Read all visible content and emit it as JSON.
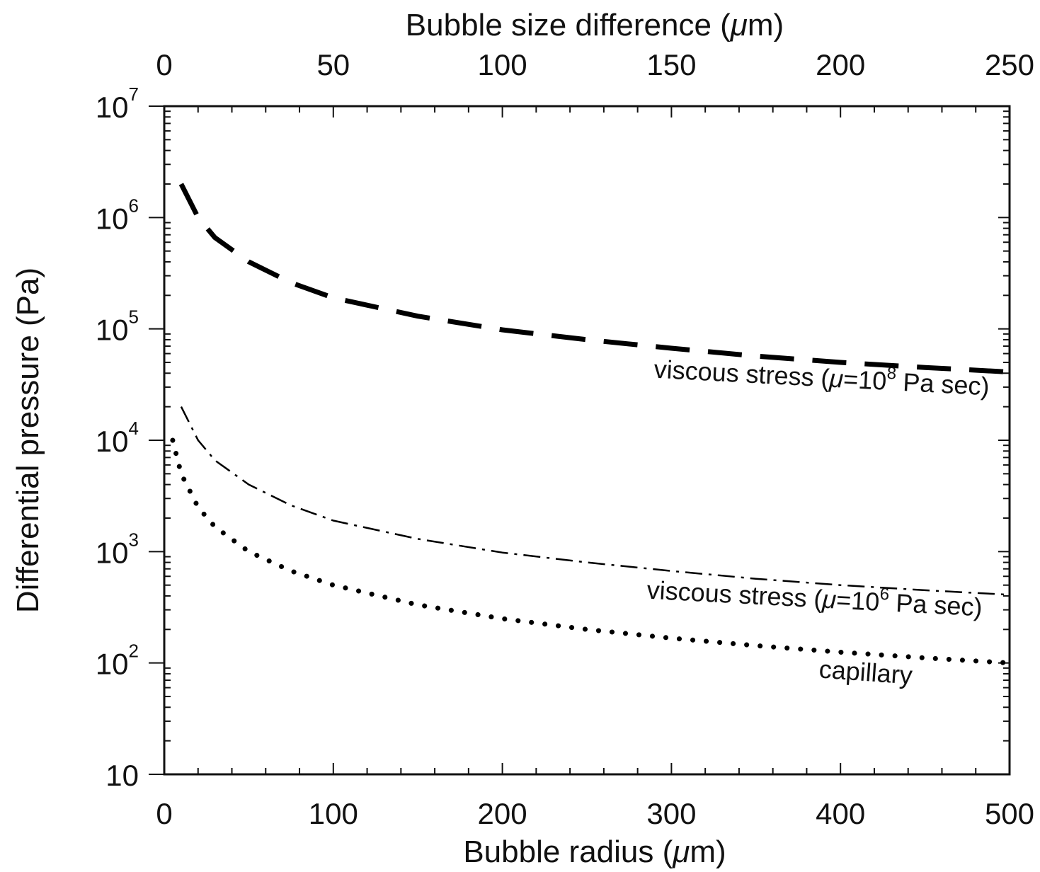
{
  "chart_data": {
    "type": "line",
    "xlabel": "Bubble radius (μm)",
    "xlabel_prefix": "Bubble radius (",
    "xlabel_unit_symbol": "μ",
    "xlabel_suffix": "m)",
    "x2label": "Bubble size difference (μm)",
    "x2label_prefix": "Bubble size difference (",
    "x2label_unit_symbol": "μ",
    "x2label_suffix": "m)",
    "ylabel": "Differential pressure (Pa)",
    "xlim": [
      0,
      500
    ],
    "x2lim": [
      0,
      250
    ],
    "ylim": [
      10,
      10000000
    ],
    "y_scale": "log",
    "grid": false,
    "x_ticks": [
      "0",
      "100",
      "200",
      "300",
      "400",
      "500"
    ],
    "x2_ticks": [
      "0",
      "50",
      "100",
      "150",
      "200",
      "250"
    ],
    "y_ticks": [
      {
        "base": "10",
        "exp": ""
      },
      {
        "base": "10",
        "exp": "2"
      },
      {
        "base": "10",
        "exp": "3"
      },
      {
        "base": "10",
        "exp": "4"
      },
      {
        "base": "10",
        "exp": "5"
      },
      {
        "base": "10",
        "exp": "6"
      },
      {
        "base": "10",
        "exp": "7"
      }
    ],
    "series": [
      {
        "name": "viscous stress (μ=10^8 Pa sec)",
        "label_parts": [
          "viscous stress (",
          "μ",
          "=10",
          "8",
          " Pa sec)"
        ],
        "style": "long-dash",
        "color": "#000000",
        "x": [
          10,
          20,
          30,
          50,
          75,
          100,
          150,
          200,
          250,
          300,
          350,
          400,
          450,
          500
        ],
        "y": [
          2000000,
          1000000,
          660000,
          400000,
          260000,
          190000,
          130000,
          98000,
          80000,
          67000,
          57000,
          50000,
          45000,
          41000
        ]
      },
      {
        "name": "viscous stress (μ=10^6 Pa sec)",
        "label_parts": [
          "viscous stress (",
          "μ",
          "=10",
          "6",
          " Pa sec)"
        ],
        "style": "dash-dot",
        "color": "#000000",
        "x": [
          10,
          20,
          30,
          50,
          75,
          100,
          150,
          200,
          250,
          300,
          350,
          400,
          450,
          500
        ],
        "y": [
          20000,
          10000,
          6600,
          4000,
          2600,
          1900,
          1300,
          980,
          800,
          670,
          570,
          500,
          450,
          410
        ]
      },
      {
        "name": "capillary",
        "label_parts": [
          "capillary"
        ],
        "style": "dotted",
        "color": "#000000",
        "x": [
          5,
          10,
          20,
          30,
          50,
          75,
          100,
          150,
          200,
          250,
          300,
          350,
          400,
          450,
          500
        ],
        "y": [
          10000,
          5000,
          2500,
          1670,
          1000,
          670,
          500,
          333,
          250,
          200,
          167,
          143,
          125,
          111,
          100
        ]
      }
    ]
  }
}
